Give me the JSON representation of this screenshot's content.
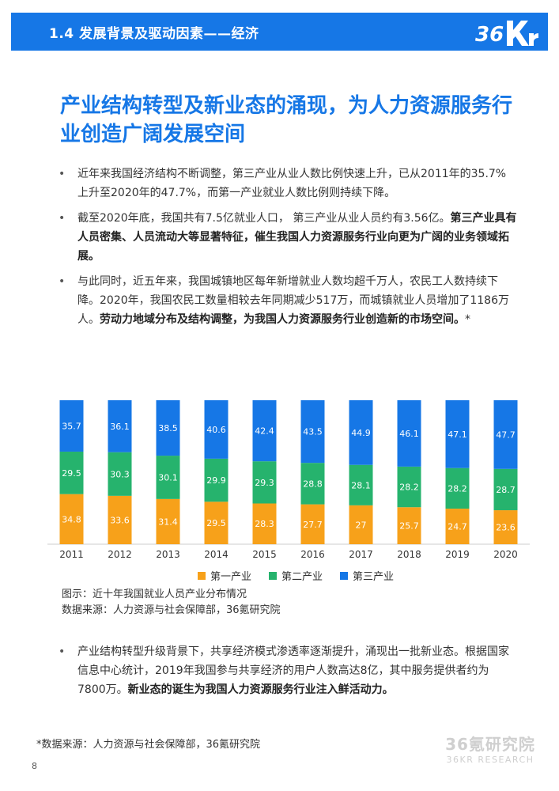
{
  "header": {
    "title": "1.4 发展背景及驱动因素——经济",
    "logo_text": "36Kr"
  },
  "main_title": "产业结构转型及新业态的涌现，为人力资源服务行业创造广阔发展空间",
  "bullets": [
    {
      "plain": "近年来我国经济结构不断调整，第三产业从业人数比例快速上升，已从2011年的35.7%上升至2020年的47.7%，而第一产业就业人数比例则持续下降。",
      "bold": "",
      "tail": ""
    },
    {
      "plain": "截至2020年底，我国共有7.5亿就业人口，  第三产业从业人员约有3.56亿。",
      "bold": "第三产业具有人员密集、人员流动大等显著特征，催生我国人力资源服务行业向更为广阔的业务领域拓展。",
      "tail": ""
    },
    {
      "plain": "与此同时，近五年来，我国城镇地区每年新增就业人数均超千万人，农民工人数持续下降。2020年，我国农民工数量相较去年同期减少517万，而城镇就业人员增加了1186万人。",
      "bold": "劳动力地域分布及结构调整，为我国人力资源服务行业创造新的市场空间。",
      "tail": "*"
    }
  ],
  "bullets2": [
    {
      "plain": "产业结构转型升级背景下，共享经济模式渗透率逐渐提升，涌现出一批新业态。根据国家信息中心统计，2019年我国参与共享经济的用户人数高达8亿，其中服务提供者约为7800万。",
      "bold": "新业态的诞生为我国人力资源服务行业注入鲜活动力。",
      "tail": ""
    }
  ],
  "chart_data": {
    "type": "bar",
    "stacked": true,
    "categories": [
      "2011",
      "2012",
      "2013",
      "2014",
      "2015",
      "2016",
      "2017",
      "2018",
      "2019",
      "2020"
    ],
    "series": [
      {
        "name": "第一产业",
        "color": "#f7a11a",
        "values": [
          34.8,
          33.6,
          31.4,
          29.5,
          28.3,
          27.7,
          27,
          25.7,
          24.7,
          23.6
        ],
        "labels": [
          "34.8",
          "33.6",
          "31.4",
          "29.5",
          "28.3",
          "27.7",
          "27",
          "25.7",
          "24.7",
          "23.6"
        ]
      },
      {
        "name": "第二产业",
        "color": "#26b36d",
        "values": [
          29.5,
          30.3,
          30.1,
          29.9,
          29.3,
          28.8,
          28.1,
          28.2,
          28.2,
          28.7
        ],
        "labels": [
          "29.5",
          "30.3",
          "30.1",
          "29.9",
          "29.3",
          "28.8",
          "28.1",
          "28.2",
          "28.2",
          "28.7"
        ]
      },
      {
        "name": "第三产业",
        "color": "#1677e6",
        "values": [
          35.7,
          36.1,
          38.5,
          40.6,
          42.4,
          43.5,
          44.9,
          46.1,
          47.1,
          47.7
        ],
        "labels": [
          "35.7",
          "36.1",
          "38.5",
          "40.6",
          "42.4",
          "43.5",
          "44.9",
          "46.1",
          "47.1",
          "47.7"
        ]
      }
    ],
    "legend_position": "bottom",
    "title": "",
    "xlabel": "",
    "ylabel": ""
  },
  "caption": {
    "line1": "图示：近十年我国就业人员产业分布情况",
    "line2": "数据来源：人力资源与社会保障部，36氪研究院"
  },
  "footnote": "*数据来源：人力资源与社会保障部，36氪研究院",
  "page_number": "8",
  "watermark": {
    "cn": "36氪研究院",
    "en": "36KR RESEARCH"
  }
}
